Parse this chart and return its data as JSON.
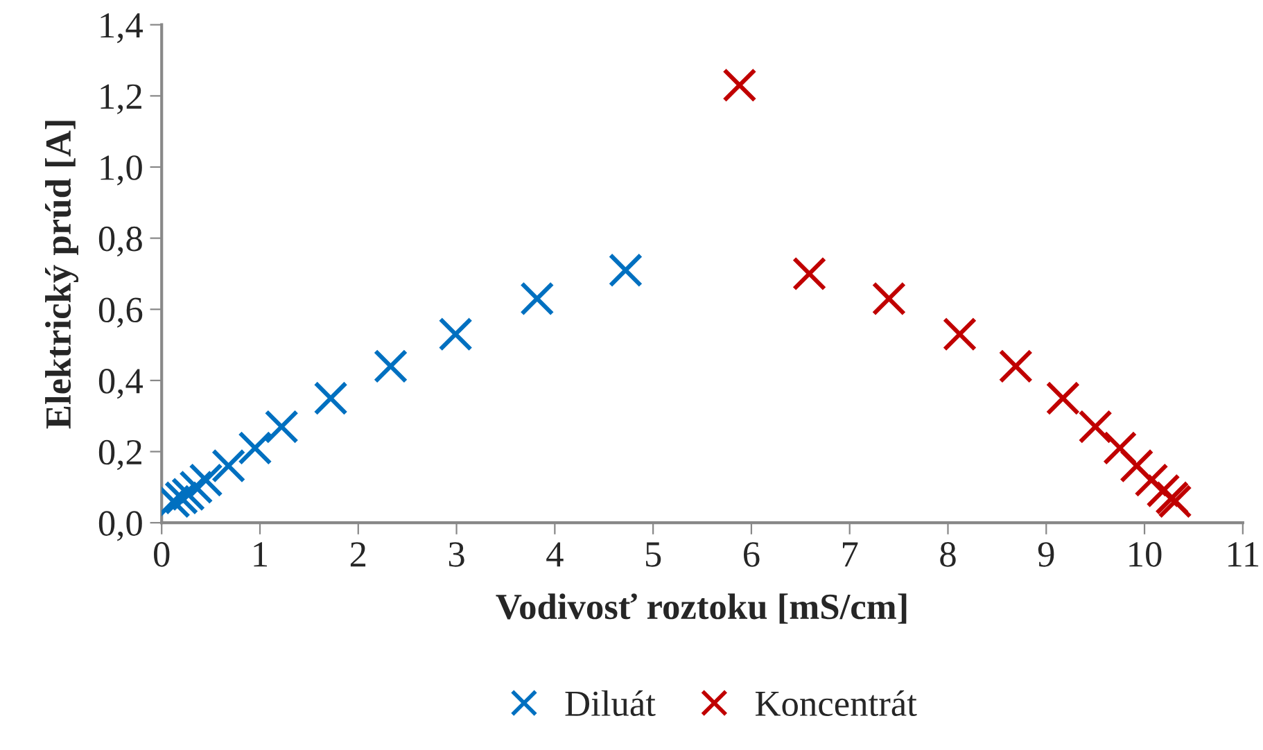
{
  "chart_data": {
    "type": "scatter",
    "xlabel": "Vodivosť roztoku [mS/cm]",
    "ylabel": "Elektrický prúd [A]",
    "xlim": [
      0,
      11
    ],
    "xticks": [
      0,
      1,
      2,
      3,
      4,
      5,
      6,
      7,
      8,
      9,
      10,
      11
    ],
    "ylim": [
      0,
      1.4
    ],
    "yticks": [
      {
        "value": 0,
        "label": "0,0"
      },
      {
        "value": 0.2,
        "label": "0,2"
      },
      {
        "value": 0.4,
        "label": "0,4"
      },
      {
        "value": 0.6,
        "label": "0,6"
      },
      {
        "value": 0.8,
        "label": "0,8"
      },
      {
        "value": 1.0,
        "label": "1,0"
      },
      {
        "value": 1.2,
        "label": "1,2"
      },
      {
        "value": 1.4,
        "label": "1,4"
      }
    ],
    "marker": "cross",
    "grid": false,
    "legend": "bottom",
    "series": [
      {
        "name": "Diluát",
        "color": "#0070c0",
        "x": [
          0.12,
          0.2,
          0.27,
          0.35,
          0.45,
          0.68,
          0.95,
          1.22,
          1.72,
          2.33,
          2.99,
          3.82,
          4.72
        ],
        "values": [
          0.06,
          0.07,
          0.08,
          0.1,
          0.12,
          0.16,
          0.21,
          0.27,
          0.35,
          0.44,
          0.53,
          0.63,
          0.71
        ]
      },
      {
        "name": "Koncentrát",
        "color": "#c00000",
        "x": [
          5.88,
          6.59,
          7.4,
          8.12,
          8.69,
          9.17,
          9.5,
          9.75,
          9.92,
          10.07,
          10.19,
          10.28,
          10.31
        ],
        "values": [
          1.23,
          0.7,
          0.63,
          0.53,
          0.44,
          0.35,
          0.27,
          0.21,
          0.16,
          0.12,
          0.09,
          0.07,
          0.06
        ]
      }
    ]
  }
}
